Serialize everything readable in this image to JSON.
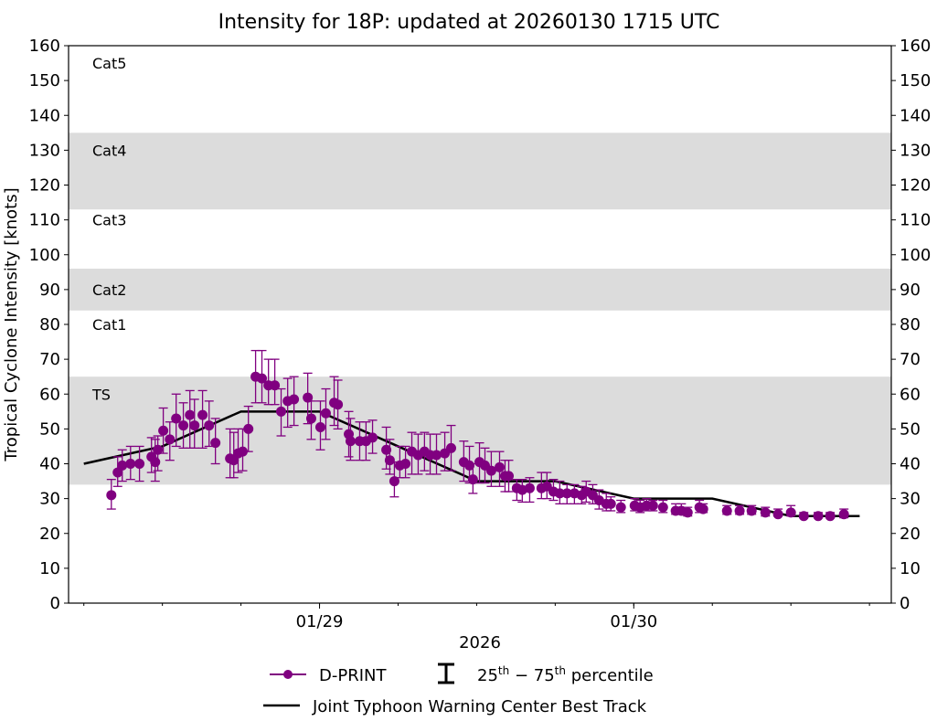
{
  "chart_data": {
    "type": "scatter",
    "title": "Intensity for 18P: updated at 20260130 1715 UTC",
    "ylabel": "Tropical Cyclone Intensity [knots]",
    "xlabel": "2026",
    "ylim": [
      0,
      160
    ],
    "yticks": [
      0,
      10,
      20,
      30,
      40,
      50,
      60,
      70,
      80,
      90,
      100,
      110,
      120,
      130,
      140,
      150,
      160
    ],
    "xlim": [
      "2026-01-28 04:50",
      "2026-01-30 19:40"
    ],
    "xticks_major": [
      {
        "time": "2026-01-29 00:00",
        "label": "01/29"
      },
      {
        "time": "2026-01-30 00:00",
        "label": "01/30"
      }
    ],
    "xticks_minor_interval_hours": 6,
    "grid": false,
    "colors": {
      "dprint": "#800080",
      "best_track": "#000000",
      "band": "#dcdcdc"
    },
    "category_bands": [
      {
        "label": "TS",
        "range": [
          34,
          65
        ],
        "shaded": true,
        "label_at": 60
      },
      {
        "label": "Cat1",
        "range": [
          65,
          84
        ],
        "shaded": false,
        "label_at": 80
      },
      {
        "label": "Cat2",
        "range": [
          84,
          96
        ],
        "shaded": true,
        "label_at": 90
      },
      {
        "label": "Cat3",
        "range": [
          96,
          113
        ],
        "shaded": false,
        "label_at": 110
      },
      {
        "label": "Cat4",
        "range": [
          113,
          135
        ],
        "shaded": true,
        "label_at": 130
      },
      {
        "label": "Cat5",
        "range": [
          135,
          160
        ],
        "shaded": false,
        "label_at": 155
      }
    ],
    "legend": {
      "placement": "bottom",
      "dprint": "D-PRINT",
      "percentile_label": "25th − 75th percentile",
      "percentile_parts": {
        "a": "25",
        "a_sup": "th",
        "mid": " − 75",
        "b_sup": "th",
        "end": " percentile"
      },
      "best_track": "Joint Typhoon Warning Center Best Track"
    },
    "best_track": [
      [
        "2026-01-28 06:00",
        40
      ],
      [
        "2026-01-28 12:00",
        45
      ],
      [
        "2026-01-28 18:00",
        55
      ],
      [
        "2026-01-29 00:00",
        55
      ],
      [
        "2026-01-29 06:00",
        45
      ],
      [
        "2026-01-29 12:00",
        35
      ],
      [
        "2026-01-29 18:00",
        35
      ],
      [
        "2026-01-30 00:00",
        30
      ],
      [
        "2026-01-30 06:00",
        30
      ],
      [
        "2026-01-30 12:00",
        25
      ],
      [
        "2026-01-30 17:15",
        25
      ]
    ],
    "dprint_fields": [
      "time",
      "intensity",
      "p25",
      "p75"
    ],
    "dprint": [
      [
        "2026-01-28 08:06",
        31,
        27,
        35.5
      ],
      [
        "2026-01-28 08:35",
        37.5,
        33.5,
        42
      ],
      [
        "2026-01-28 08:56",
        39.5,
        35,
        44
      ],
      [
        "2026-01-28 09:34",
        40,
        35.5,
        45
      ],
      [
        "2026-01-28 10:15",
        40,
        35,
        45
      ],
      [
        "2026-01-28 11:10",
        42,
        37.5,
        47.5
      ],
      [
        "2026-01-28 11:27",
        40.5,
        35,
        47
      ],
      [
        "2026-01-28 11:39",
        44,
        38,
        48
      ],
      [
        "2026-01-28 12:04",
        49.5,
        43,
        56
      ],
      [
        "2026-01-28 12:34",
        47,
        41,
        52
      ],
      [
        "2026-01-28 13:03",
        53,
        45,
        60
      ],
      [
        "2026-01-28 13:36",
        51,
        44.5,
        57.5
      ],
      [
        "2026-01-28 14:06",
        54,
        44.5,
        61
      ],
      [
        "2026-01-28 14:27",
        51,
        44.5,
        58.5
      ],
      [
        "2026-01-28 15:04",
        54,
        44.5,
        61
      ],
      [
        "2026-01-28 15:34",
        51,
        45,
        58
      ],
      [
        "2026-01-28 16:03",
        46,
        40,
        53
      ],
      [
        "2026-01-28 17:10",
        41.5,
        36,
        50
      ],
      [
        "2026-01-28 17:27",
        41,
        36,
        49
      ],
      [
        "2026-01-28 17:47",
        43,
        37.5,
        50
      ],
      [
        "2026-01-28 18:08",
        43.5,
        38,
        50
      ],
      [
        "2026-01-28 18:34",
        50,
        43.5,
        56.5
      ],
      [
        "2026-01-28 19:07",
        65,
        57.5,
        72.5
      ],
      [
        "2026-01-28 19:36",
        64.5,
        57.5,
        72.5
      ],
      [
        "2026-01-28 20:06",
        62.5,
        57,
        70
      ],
      [
        "2026-01-28 20:35",
        62.5,
        57,
        70
      ],
      [
        "2026-01-28 21:04",
        55,
        48,
        61.5
      ],
      [
        "2026-01-28 21:34",
        58,
        50.5,
        64.5
      ],
      [
        "2026-01-28 22:03",
        58.5,
        51,
        65
      ],
      [
        "2026-01-28 23:06",
        59,
        51.5,
        66
      ],
      [
        "2026-01-28 23:22",
        53,
        47,
        58
      ],
      [
        "2026-01-29 00:04",
        50.5,
        44,
        58
      ],
      [
        "2026-01-29 00:29",
        54.5,
        47,
        61.5
      ],
      [
        "2026-01-29 01:07",
        57.5,
        51,
        65
      ],
      [
        "2026-01-29 01:24",
        57,
        50,
        64
      ],
      [
        "2026-01-29 02:14",
        48.5,
        42,
        55
      ],
      [
        "2026-01-29 02:22",
        46.5,
        41,
        53
      ],
      [
        "2026-01-29 03:04",
        46.5,
        41,
        52
      ],
      [
        "2026-01-29 03:33",
        46.5,
        41,
        52
      ],
      [
        "2026-01-29 04:03",
        47.5,
        43,
        52.5
      ],
      [
        "2026-01-29 05:06",
        44,
        38.5,
        50.5
      ],
      [
        "2026-01-29 05:22",
        41,
        37,
        47
      ],
      [
        "2026-01-29 05:43",
        35,
        30.5,
        40.5
      ],
      [
        "2026-01-29 06:08",
        39.5,
        36,
        45
      ],
      [
        "2026-01-29 06:34",
        40,
        36,
        45
      ],
      [
        "2026-01-29 07:03",
        43.5,
        37,
        49
      ],
      [
        "2026-01-29 07:32",
        42.5,
        37,
        48.5
      ],
      [
        "2026-01-29 08:01",
        43.5,
        38,
        49
      ],
      [
        "2026-01-29 08:27",
        42.5,
        37,
        48.5
      ],
      [
        "2026-01-29 08:56",
        42.5,
        37,
        48.5
      ],
      [
        "2026-01-29 09:34",
        43,
        38,
        49
      ],
      [
        "2026-01-29 10:03",
        44.5,
        38,
        51
      ],
      [
        "2026-01-29 11:01",
        40.5,
        35,
        46.5
      ],
      [
        "2026-01-29 11:27",
        39.5,
        34.5,
        45
      ],
      [
        "2026-01-29 11:43",
        35.5,
        31.5,
        40
      ],
      [
        "2026-01-29 12:13",
        40.5,
        34.5,
        46
      ],
      [
        "2026-01-29 12:38",
        39.5,
        34.5,
        44.5
      ],
      [
        "2026-01-29 13:07",
        38,
        33.5,
        43.5
      ],
      [
        "2026-01-29 13:45",
        39,
        33.5,
        43.5
      ],
      [
        "2026-01-29 14:10",
        36.5,
        32,
        41
      ],
      [
        "2026-01-29 14:27",
        36.5,
        32,
        41
      ],
      [
        "2026-01-29 15:04",
        33,
        29.5,
        35.5
      ],
      [
        "2026-01-29 15:29",
        32.5,
        29,
        35.5
      ],
      [
        "2026-01-29 16:03",
        33,
        29,
        36
      ],
      [
        "2026-01-29 16:57",
        33,
        30,
        37.5
      ],
      [
        "2026-01-29 17:22",
        33.5,
        30,
        37.5
      ],
      [
        "2026-01-29 17:52",
        32,
        29.5,
        35.5
      ],
      [
        "2026-01-29 18:21",
        31.5,
        28.5,
        35
      ],
      [
        "2026-01-29 18:54",
        31.5,
        28.5,
        34
      ],
      [
        "2026-01-29 19:28",
        31.5,
        28.5,
        34
      ],
      [
        "2026-01-29 20:01",
        31,
        28.5,
        33.5
      ],
      [
        "2026-01-29 20:22",
        32,
        29,
        35
      ],
      [
        "2026-01-29 20:52",
        31,
        28.5,
        34
      ],
      [
        "2026-01-29 21:21",
        29.5,
        27,
        32.5
      ],
      [
        "2026-01-29 21:54",
        28.5,
        26.5,
        31.5
      ],
      [
        "2026-01-29 22:15",
        28.5,
        26.5,
        30.5
      ],
      [
        "2026-01-29 23:01",
        27.5,
        26,
        29.5
      ],
      [
        "2026-01-30 00:04",
        28,
        26.5,
        30
      ],
      [
        "2026-01-30 00:29",
        27.5,
        26,
        29.5
      ],
      [
        "2026-01-30 00:59",
        28,
        26.5,
        30
      ],
      [
        "2026-01-30 01:28",
        28,
        26.5,
        29.5
      ],
      [
        "2026-01-30 02:14",
        27.5,
        26,
        29.5
      ],
      [
        "2026-01-30 03:12",
        26.5,
        25.5,
        28.5
      ],
      [
        "2026-01-30 03:38",
        26.5,
        25.5,
        28.5
      ],
      [
        "2026-01-30 04:07",
        26,
        25,
        27.5
      ],
      [
        "2026-01-30 05:01",
        27.5,
        26,
        29.5
      ],
      [
        "2026-01-30 05:18",
        27,
        26,
        28.5
      ],
      [
        "2026-01-30 07:07",
        26.5,
        25.5,
        28
      ],
      [
        "2026-01-30 08:05",
        26.5,
        25.5,
        28
      ],
      [
        "2026-01-30 09:00",
        26.5,
        25.5,
        28
      ],
      [
        "2026-01-30 10:03",
        26,
        25,
        27.5
      ],
      [
        "2026-01-30 11:01",
        25.5,
        25,
        27
      ],
      [
        "2026-01-30 12:00",
        26,
        25,
        28
      ],
      [
        "2026-01-30 12:59",
        25,
        24.5,
        26
      ],
      [
        "2026-01-30 14:05",
        25,
        24.5,
        26
      ],
      [
        "2026-01-30 15:00",
        25,
        24.5,
        26
      ],
      [
        "2026-01-30 16:03",
        25.5,
        24.5,
        27
      ]
    ]
  }
}
